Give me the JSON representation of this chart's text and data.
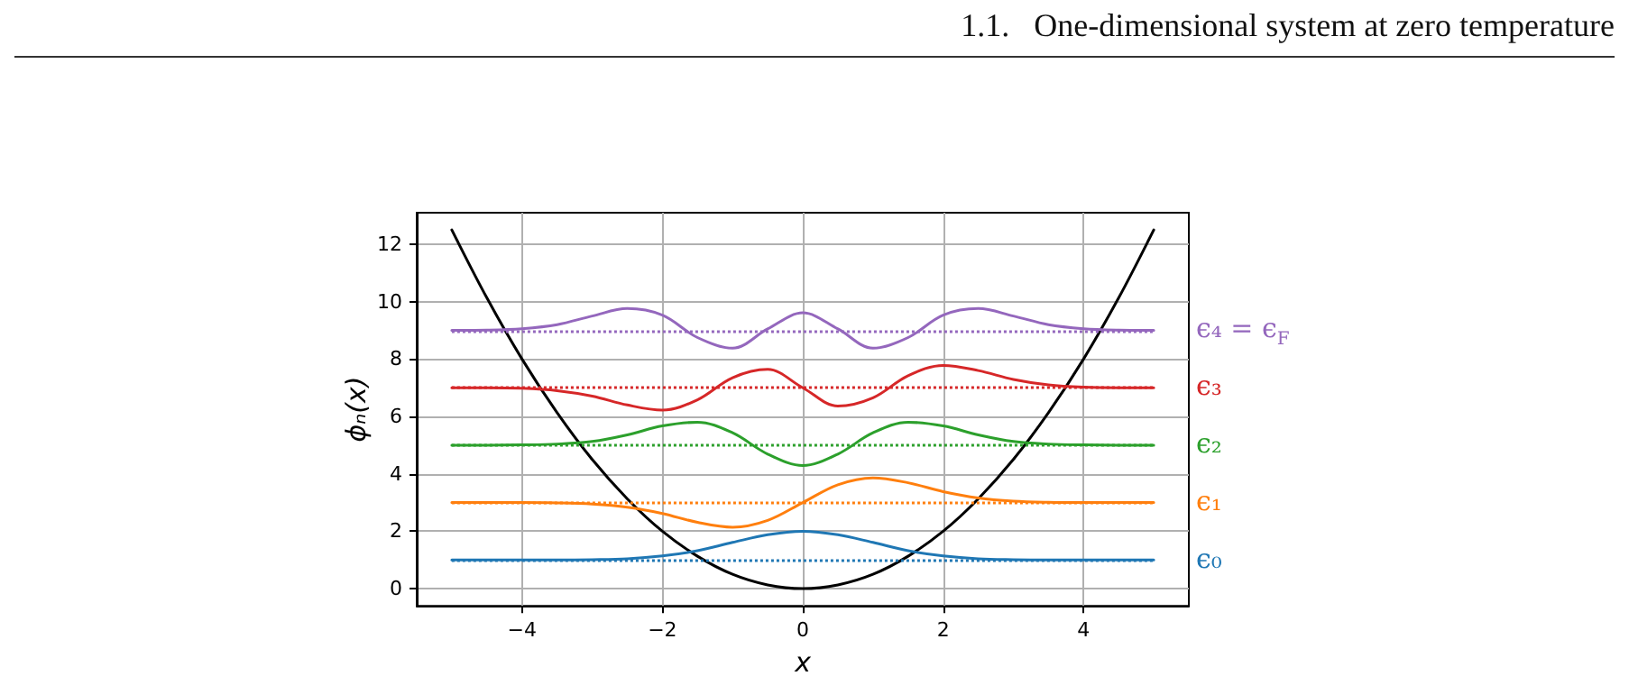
{
  "chart_data": {
    "type": "line",
    "title": "1.1.   One-dimensional system at zero temperature",
    "xlabel": "x",
    "ylabel": "ϕₙ(x)",
    "x": [
      -5,
      -4.5,
      -4,
      -3.5,
      -3,
      -2.5,
      -2,
      -1.5,
      -1,
      -0.5,
      0,
      0.5,
      1,
      1.5,
      2,
      2.5,
      3,
      3.5,
      4,
      4.5,
      5
    ],
    "series": [
      {
        "color": "#000000",
        "values": [
          12.5,
          10.13,
          8,
          6.13,
          4.5,
          3.13,
          2,
          1.13,
          0.5,
          0.13,
          0,
          0.13,
          0.5,
          1.13,
          2,
          3.13,
          4.5,
          6.13,
          8,
          10.13,
          12.5
        ]
      },
      {
        "color": "#1f77b4",
        "values": [
          1,
          1,
          1,
          1,
          1.01,
          1.04,
          1.14,
          1.32,
          1.61,
          1.88,
          2,
          1.88,
          1.61,
          1.32,
          1.14,
          1.04,
          1.01,
          1,
          1,
          1,
          1
        ]
      },
      {
        "color": "#ff7f0e",
        "values": [
          3,
          3,
          3,
          2.99,
          2.95,
          2.84,
          2.62,
          2.31,
          2.14,
          2.38,
          3,
          3.62,
          3.86,
          3.69,
          3.38,
          3.16,
          3.05,
          3.01,
          3,
          3,
          3
        ]
      },
      {
        "color": "#2ca02c",
        "values": [
          5,
          5,
          5.01,
          5.04,
          5.13,
          5.36,
          5.67,
          5.8,
          5.43,
          4.69,
          4.29,
          4.69,
          5.43,
          5.8,
          5.67,
          5.36,
          5.13,
          5.04,
          5.01,
          5,
          5
        ]
      },
      {
        "color": "#d62728",
        "values": [
          7,
          7,
          6.98,
          6.9,
          6.71,
          6.4,
          6.22,
          6.58,
          7.35,
          7.64,
          7,
          6.36,
          6.65,
          7.42,
          7.78,
          7.6,
          7.29,
          7.1,
          7.02,
          7,
          7
        ]
      },
      {
        "color": "#9467bd",
        "values": [
          9,
          9.01,
          9.06,
          9.2,
          9.5,
          9.76,
          9.53,
          8.75,
          8.38,
          9.05,
          9.61,
          9.05,
          8.38,
          8.75,
          9.53,
          9.76,
          9.5,
          9.2,
          9.06,
          9.01,
          9
        ]
      }
    ],
    "ref_lines": [
      {
        "axis": "y",
        "value": 1,
        "label": "ϵ₀",
        "color": "#1f77b4",
        "line_style": "dotted"
      },
      {
        "axis": "y",
        "value": 3,
        "label": "ϵ₁",
        "color": "#ff7f0e",
        "line_style": "dotted"
      },
      {
        "axis": "y",
        "value": 5,
        "label": "ϵ₂",
        "color": "#2ca02c",
        "line_style": "dotted"
      },
      {
        "axis": "y",
        "value": 7,
        "label": "ϵ₃",
        "color": "#d62728",
        "line_style": "dotted"
      },
      {
        "axis": "y",
        "value": 9,
        "label": "ϵ₄ = ϵ$_{F}$",
        "color": "#9467bd",
        "line_style": "dotted"
      }
    ],
    "xlim": [
      -5.5,
      5.5
    ],
    "xticks": [
      -4,
      -2,
      0,
      2,
      4
    ],
    "ylim": [
      -0.6,
      13.1
    ],
    "yticks": [
      0,
      2,
      4,
      6,
      8,
      10,
      12
    ],
    "grid": true
  }
}
